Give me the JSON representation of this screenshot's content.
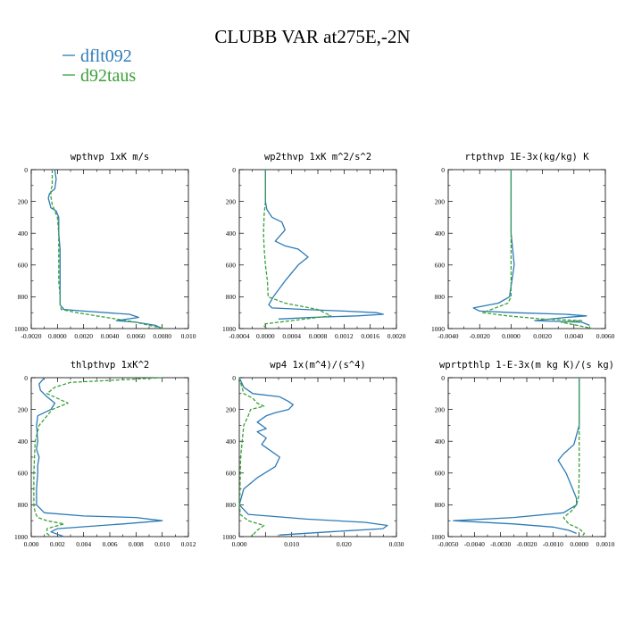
{
  "title": "CLUBB VAR at275E,-2N",
  "legend": [
    {
      "label": "dflt092",
      "color": "#2d7bb6",
      "dashed": false
    },
    {
      "label": "d92taus",
      "color": "#3aa138",
      "dashed": true
    }
  ],
  "chart_data": [
    {
      "type": "line",
      "title": "wpthvp  1xK m/s",
      "xlim": [
        -0.002,
        0.01
      ],
      "ylim": [
        1000,
        0
      ],
      "xticks": [
        "-0.0020",
        "0.0000",
        "0.0020",
        "0.0040",
        "0.0060",
        "0.0080",
        "0.010"
      ],
      "yticks": [
        "0",
        "200",
        "400",
        "600",
        "800",
        "1000"
      ],
      "series": [
        {
          "name": "dflt092",
          "x": [
            -0.0002,
            -0.0001,
            -0.0002,
            -0.0006,
            -0.0007,
            -0.0005,
            -0.0001,
            0.0001,
            0.0001,
            0.0002,
            0.0002,
            0.0002,
            0.0002,
            0.0002,
            0.0003,
            0.0005,
            0.002,
            0.0055,
            0.0062,
            0.0045,
            0.006,
            0.0075,
            0.008
          ],
          "y": [
            0,
            60,
            120,
            150,
            180,
            240,
            260,
            300,
            400,
            500,
            600,
            700,
            800,
            850,
            860,
            880,
            890,
            910,
            930,
            950,
            960,
            980,
            1000
          ]
        },
        {
          "name": "d92taus",
          "x": [
            -0.0004,
            -0.0004,
            -0.0005,
            -0.0005,
            -0.0004,
            -0.0002,
            0,
            0.0001,
            0.0001,
            0.0001,
            0.0001,
            0.0002,
            0.0002,
            0.0003,
            0.0015,
            0.003,
            0.0045,
            0.006,
            0.007,
            0.0082
          ],
          "y": [
            0,
            100,
            130,
            170,
            220,
            260,
            300,
            400,
            500,
            600,
            700,
            800,
            850,
            880,
            900,
            920,
            940,
            960,
            980,
            1000
          ]
        }
      ]
    },
    {
      "type": "line",
      "title": "wp2thvp  1xK m^2/s^2",
      "xlim": [
        -0.0004,
        0.002
      ],
      "ylim": [
        1000,
        0
      ],
      "xticks": [
        "-0.0004",
        "0.0000",
        "0.0004",
        "0.0008",
        "0.0012",
        "0.0016",
        "0.0020"
      ],
      "yticks": [
        "0",
        "200",
        "400",
        "600",
        "800",
        "1000"
      ],
      "series": [
        {
          "name": "dflt092",
          "x": [
            0,
            0,
            0,
            2e-05,
            0.0001,
            0.00025,
            0.0003,
            0.00015,
            0.0003,
            0.0005,
            0.00065,
            0.0005,
            0.0003,
            0.00012,
            5e-05,
            0.0001,
            0.0006,
            0.0012,
            0.0017,
            0.0018,
            0.0014,
            0.0007,
            0.0002
          ],
          "y": [
            0,
            100,
            200,
            250,
            300,
            330,
            380,
            450,
            480,
            500,
            550,
            600,
            700,
            800,
            850,
            870,
            880,
            890,
            900,
            910,
            920,
            930,
            940
          ]
        },
        {
          "name": "d92taus",
          "x": [
            0,
            0,
            -2e-05,
            -3e-05,
            -2e-05,
            0,
            3e-05,
            4e-05,
            0.0003,
            0.0008,
            0.001,
            0.0006,
            0.0002,
            0,
            -3e-05,
            2e-05
          ],
          "y": [
            0,
            200,
            280,
            400,
            500,
            600,
            700,
            800,
            840,
            880,
            920,
            940,
            960,
            970,
            980,
            1000
          ]
        }
      ]
    },
    {
      "type": "line",
      "title": "rtpthvp  1E-3x(kg/kg) K",
      "xlim": [
        -0.004,
        0.006
      ],
      "ylim": [
        1000,
        0
      ],
      "xticks": [
        "-0.0040",
        "-0.0020",
        "0.0000",
        "0.0020",
        "0.0040",
        "0.0060"
      ],
      "yticks": [
        "0",
        "200",
        "400",
        "600",
        "800",
        "1000"
      ],
      "series": [
        {
          "name": "dflt092",
          "x": [
            0,
            0,
            0,
            0,
            0.0001,
            0.0002,
            5e-05,
            -0.0001,
            -0.0008,
            -0.0024,
            -0.002,
            0.0002,
            0.0035,
            0.0048,
            0.0035,
            0.0015,
            0.0045,
            0.005
          ],
          "y": [
            0,
            200,
            300,
            400,
            500,
            600,
            700,
            800,
            840,
            870,
            890,
            900,
            910,
            920,
            930,
            950,
            960,
            980
          ]
        },
        {
          "name": "d92taus",
          "x": [
            0,
            0,
            0,
            0,
            0,
            -0.0002,
            -0.001,
            -0.0018,
            -0.0002,
            0.002,
            0.0045,
            0.0032,
            0.0042,
            0.0052
          ],
          "y": [
            0,
            200,
            400,
            600,
            800,
            840,
            870,
            900,
            920,
            940,
            950,
            960,
            980,
            1000
          ]
        }
      ]
    },
    {
      "type": "line",
      "title": "thlpthvp  1xK^2",
      "xlim": [
        0,
        0.012
      ],
      "ylim": [
        1000,
        0
      ],
      "xticks": [
        "0.000",
        "0.002",
        "0.004",
        "0.006",
        "0.008",
        "0.010",
        "0.012"
      ],
      "yticks": [
        "0",
        "200",
        "400",
        "600",
        "800",
        "1000"
      ],
      "series": [
        {
          "name": "dflt092",
          "x": [
            0.001,
            0.0006,
            0.0007,
            0.0012,
            0.0018,
            0.0015,
            0.0005,
            0.0004,
            0.0005,
            0.0004,
            0.0006,
            0.0005,
            0.0005,
            0.0004,
            0.0004,
            0.001,
            0.004,
            0.008,
            0.01,
            0.007,
            0.002,
            0.0015,
            0.0025
          ],
          "y": [
            0,
            40,
            80,
            120,
            160,
            200,
            240,
            300,
            400,
            450,
            500,
            550,
            600,
            700,
            800,
            850,
            870,
            880,
            900,
            920,
            950,
            970,
            1000
          ]
        },
        {
          "name": "d92taus",
          "x": [
            0.01,
            0.003,
            0.0018,
            0.0012,
            0.0028,
            0.0016,
            0.001,
            0.0006,
            0.0003,
            0.0002,
            0.0002,
            0.0003,
            0.0005,
            0.0012,
            0.0025,
            0.0012,
            0.0012,
            0.0015
          ],
          "y": [
            0,
            30,
            60,
            100,
            160,
            200,
            260,
            300,
            400,
            600,
            800,
            850,
            880,
            900,
            920,
            950,
            980,
            1000
          ]
        }
      ]
    },
    {
      "type": "line",
      "title": "wp4  1x(m^4)/(s^4)",
      "xlim": [
        0,
        0.035
      ],
      "ylim": [
        1000,
        0
      ],
      "xticks": [
        "0.000",
        "",
        "0.010",
        "",
        "0.020",
        "",
        "0.030"
      ],
      "yticks": [
        "0",
        "200",
        "400",
        "600",
        "800",
        "1000"
      ],
      "series": [
        {
          "name": "dflt092",
          "x": [
            0,
            0.001,
            0.003,
            0.009,
            0.011,
            0.012,
            0.011,
            0.008,
            0.006,
            0.004,
            0.006,
            0.004,
            0.006,
            0.005,
            0.009,
            0.008,
            0.004,
            0.001,
            0,
            0.002,
            0.015,
            0.028,
            0.033,
            0.032,
            0.02,
            0.009
          ],
          "y": [
            0,
            60,
            100,
            120,
            150,
            170,
            200,
            220,
            240,
            280,
            320,
            340,
            380,
            420,
            500,
            560,
            630,
            700,
            800,
            860,
            890,
            910,
            930,
            950,
            970,
            990
          ]
        },
        {
          "name": "d92taus",
          "x": [
            0,
            0.001,
            0.003,
            0.004,
            0.0055,
            0.0025,
            0.002,
            0.001,
            0.0003,
            0.0001,
            0.0002,
            0.002,
            0.0055,
            0.004,
            0.003,
            0.0025
          ],
          "y": [
            0,
            100,
            130,
            160,
            180,
            200,
            240,
            300,
            500,
            800,
            860,
            900,
            930,
            960,
            990,
            1000
          ]
        }
      ]
    },
    {
      "type": "line",
      "title": "wprtpthlp  1-E-3x(m kg K)/(s kg)",
      "xlim": [
        -0.005,
        0.001
      ],
      "ylim": [
        1000,
        0
      ],
      "xticks": [
        "-0.0050",
        "-0.0040",
        "-0.0030",
        "-0.0020",
        "-0.0010",
        "0.0000",
        "0.0010"
      ],
      "yticks": [
        "0",
        "200",
        "400",
        "600",
        "800",
        "1000"
      ],
      "series": [
        {
          "name": "dflt092",
          "x": [
            0,
            0,
            0,
            -0.0002,
            -0.0006,
            -0.0008,
            -0.0005,
            -0.0003,
            -0.0001,
            -0.0001,
            -0.0006,
            -0.0025,
            -0.0048,
            -0.0025,
            -0.001,
            -0.0004,
            -0.0001
          ],
          "y": [
            0,
            200,
            300,
            420,
            480,
            520,
            600,
            680,
            760,
            800,
            850,
            880,
            900,
            920,
            940,
            960,
            980
          ]
        },
        {
          "name": "d92taus",
          "x": [
            0,
            0,
            0,
            -2e-05,
            -0.0001,
            -0.0003,
            -0.0006,
            -0.0004,
            0,
            0.0002,
            0.0001
          ],
          "y": [
            0,
            200,
            600,
            750,
            800,
            840,
            880,
            920,
            950,
            980,
            1000
          ]
        }
      ]
    }
  ]
}
